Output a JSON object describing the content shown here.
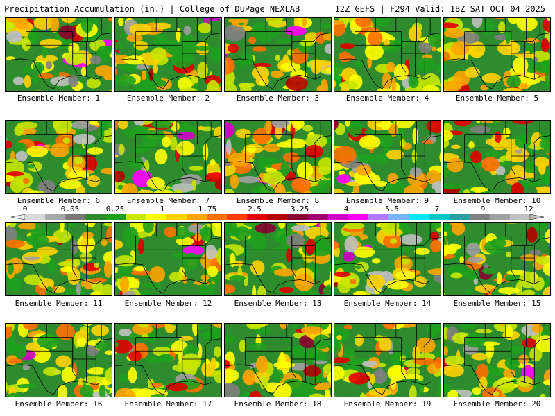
{
  "header": {
    "title": "Precipitation Accumulation (in.) | College of DuPage NEXLAB",
    "run_info": "12Z GEFS | F294 Valid: 18Z SAT OCT 04 2025"
  },
  "colorbar": {
    "labels": [
      "0",
      "0.05",
      "0.25",
      "1",
      "1.75",
      "2.5",
      "3.25",
      "4",
      "5.5",
      "7",
      "9",
      "12"
    ],
    "colors": [
      "#d9d9d9",
      "#a8a8a8",
      "#787878",
      "#2e8b2e",
      "#1ea01e",
      "#c8e600",
      "#ffff00",
      "#ffd200",
      "#ffa500",
      "#ff7000",
      "#ff3c00",
      "#e00000",
      "#b40000",
      "#8b0030",
      "#a0006e",
      "#d200c8",
      "#ff00ff",
      "#b478ff",
      "#78b4ff",
      "#00e6ff",
      "#00c8c8",
      "#28a0a0",
      "#808080",
      "#a0a0a0",
      "#c0c0c0"
    ]
  },
  "panels": [
    {
      "label": "Ensemble Member: 1",
      "seed": 1
    },
    {
      "label": "Ensemble Member: 2",
      "seed": 2
    },
    {
      "label": "Ensemble Member: 3",
      "seed": 3
    },
    {
      "label": "Ensemble Member: 4",
      "seed": 4
    },
    {
      "label": "Ensemble Member: 5",
      "seed": 5
    },
    {
      "label": "Ensemble Member: 6",
      "seed": 6
    },
    {
      "label": "Ensemble Member: 7",
      "seed": 7
    },
    {
      "label": "Ensemble Member: 8",
      "seed": 8
    },
    {
      "label": "Ensemble Member: 9",
      "seed": 9
    },
    {
      "label": "Ensemble Member: 10",
      "seed": 10
    },
    {
      "label": "Ensemble Member: 11",
      "seed": 11
    },
    {
      "label": "Ensemble Member: 12",
      "seed": 12
    },
    {
      "label": "Ensemble Member: 13",
      "seed": 13
    },
    {
      "label": "Ensemble Member: 14",
      "seed": 14
    },
    {
      "label": "Ensemble Member: 15",
      "seed": 15
    },
    {
      "label": "Ensemble Member: 16",
      "seed": 16
    },
    {
      "label": "Ensemble Member: 17",
      "seed": 17
    },
    {
      "label": "Ensemble Member: 18",
      "seed": 18
    },
    {
      "label": "Ensemble Member: 19",
      "seed": 19
    },
    {
      "label": "Ensemble Member: 20",
      "seed": 20
    }
  ]
}
